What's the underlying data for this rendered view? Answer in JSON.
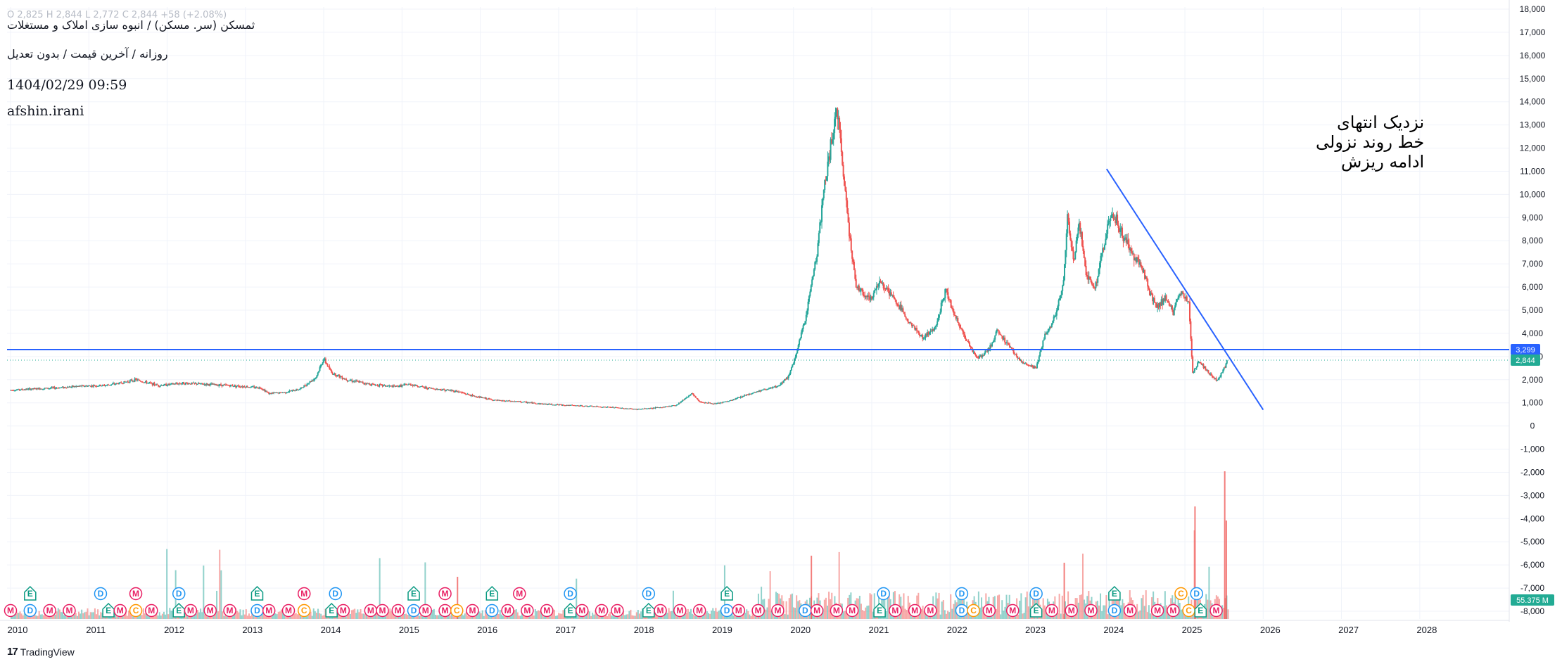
{
  "header": {
    "ohlc_faint": "O 2,825  H 2,844  L 2,772  C 2,844  +58 (+2.08%)",
    "title": "ثمسکن (سر. مسکن) / انبوه سازی املاک و مستغلات",
    "subtitle": "روزانه / آخرین قیمت / بدون تعدیل",
    "datetime": "1404/02/29 09:59",
    "author": "afshin.irani"
  },
  "annotation": {
    "lines": [
      "نزدیک انتهای",
      "خط روند نزولی",
      "ادامه ریزش"
    ]
  },
  "price_tags": {
    "horizontal_line": "3,299",
    "last_price": "2,844",
    "volume": "55.375 M"
  },
  "colors": {
    "up": "#26a69a",
    "down": "#ef5350",
    "trendline": "#2962ff",
    "last_price_tag": "#22ab94",
    "grid": "#f0f3fa",
    "event_dividend": "#2196f3",
    "event_meeting": "#e91e63",
    "event_earnings": "#089981",
    "event_capital": "#ff9800"
  },
  "footer": {
    "brand": "TradingView"
  },
  "chart_data": {
    "type": "candlestick",
    "title": "ثمسکن (سر. مسکن) / انبوه سازی املاک و مستغلات",
    "x_axis": {
      "type": "year",
      "ticks": [
        "2010",
        "2011",
        "2012",
        "2013",
        "2014",
        "2015",
        "2016",
        "2017",
        "2018",
        "2019",
        "2020",
        "2021",
        "2022",
        "2023",
        "2024",
        "2025",
        "2026",
        "2027",
        "2028"
      ],
      "range": [
        2010.0,
        2028.8
      ]
    },
    "y_axis": {
      "ticks": [
        "18,000",
        "17,000",
        "16,000",
        "15,000",
        "14,000",
        "13,000",
        "12,000",
        "11,000",
        "10,000",
        "9,000",
        "8,000",
        "7,000",
        "6,000",
        "5,000",
        "4,000",
        "3,000",
        "2,000",
        "1,000",
        "0",
        "-1,000",
        "-2,000",
        "-3,000",
        "-4,000",
        "-5,000",
        "-6,000",
        "-7,000",
        "-8,000"
      ],
      "range": [
        -8500,
        18000
      ]
    },
    "price_series": {
      "name": "ثمسکن",
      "points": [
        [
          2010.0,
          1550
        ],
        [
          2010.3,
          1600
        ],
        [
          2010.6,
          1650
        ],
        [
          2010.9,
          1720
        ],
        [
          2011.2,
          1750
        ],
        [
          2011.4,
          1850
        ],
        [
          2011.6,
          2000
        ],
        [
          2011.7,
          1900
        ],
        [
          2011.9,
          1750
        ],
        [
          2012.2,
          1850
        ],
        [
          2012.5,
          1800
        ],
        [
          2012.8,
          1750
        ],
        [
          2013.0,
          1700
        ],
        [
          2013.2,
          1650
        ],
        [
          2013.3,
          1400
        ],
        [
          2013.5,
          1450
        ],
        [
          2013.7,
          1600
        ],
        [
          2013.9,
          2100
        ],
        [
          2014.0,
          2900
        ],
        [
          2014.1,
          2300
        ],
        [
          2014.3,
          2000
        ],
        [
          2014.6,
          1800
        ],
        [
          2014.9,
          1700
        ],
        [
          2015.1,
          1800
        ],
        [
          2015.3,
          1650
        ],
        [
          2015.7,
          1500
        ],
        [
          2015.9,
          1300
        ],
        [
          2016.2,
          1100
        ],
        [
          2016.5,
          1050
        ],
        [
          2016.8,
          950
        ],
        [
          2017.1,
          900
        ],
        [
          2017.4,
          850
        ],
        [
          2017.7,
          800
        ],
        [
          2018.0,
          720
        ],
        [
          2018.3,
          800
        ],
        [
          2018.5,
          900
        ],
        [
          2018.7,
          1400
        ],
        [
          2018.8,
          1050
        ],
        [
          2019.0,
          950
        ],
        [
          2019.2,
          1100
        ],
        [
          2019.4,
          1350
        ],
        [
          2019.6,
          1550
        ],
        [
          2019.8,
          1700
        ],
        [
          2019.95,
          2200
        ],
        [
          2020.05,
          3300
        ],
        [
          2020.15,
          4600
        ],
        [
          2020.3,
          7500
        ],
        [
          2020.4,
          10500
        ],
        [
          2020.5,
          12500
        ],
        [
          2020.55,
          13800
        ],
        [
          2020.62,
          11500
        ],
        [
          2020.72,
          8200
        ],
        [
          2020.8,
          6000
        ],
        [
          2020.9,
          5700
        ],
        [
          2021.0,
          5500
        ],
        [
          2021.1,
          6300
        ],
        [
          2021.3,
          5400
        ],
        [
          2021.5,
          4400
        ],
        [
          2021.65,
          3800
        ],
        [
          2021.8,
          4200
        ],
        [
          2021.95,
          5900
        ],
        [
          2022.05,
          4800
        ],
        [
          2022.2,
          3800
        ],
        [
          2022.35,
          2900
        ],
        [
          2022.5,
          3300
        ],
        [
          2022.6,
          4100
        ],
        [
          2022.75,
          3500
        ],
        [
          2022.9,
          2800
        ],
        [
          2023.0,
          2600
        ],
        [
          2023.1,
          2500
        ],
        [
          2023.2,
          3800
        ],
        [
          2023.35,
          4800
        ],
        [
          2023.45,
          6200
        ],
        [
          2023.5,
          9000
        ],
        [
          2023.58,
          7200
        ],
        [
          2023.65,
          8800
        ],
        [
          2023.75,
          6400
        ],
        [
          2023.85,
          6000
        ],
        [
          2023.95,
          7500
        ],
        [
          2024.05,
          9200
        ],
        [
          2024.12,
          8900
        ],
        [
          2024.2,
          8300
        ],
        [
          2024.3,
          7600
        ],
        [
          2024.45,
          6900
        ],
        [
          2024.55,
          5800
        ],
        [
          2024.65,
          5100
        ],
        [
          2024.75,
          5600
        ],
        [
          2024.85,
          4900
        ],
        [
          2024.95,
          5800
        ],
        [
          2025.05,
          5300
        ],
        [
          2025.1,
          2300
        ],
        [
          2025.18,
          2800
        ],
        [
          2025.3,
          2300
        ],
        [
          2025.42,
          1950
        ],
        [
          2025.55,
          2844
        ]
      ]
    },
    "trendline": {
      "from": [
        2024.0,
        11100
      ],
      "to": [
        2026.0,
        700
      ]
    },
    "horizontal_line": {
      "value": 3299
    },
    "last_price_line": {
      "value": 2844
    },
    "volume": {
      "last": "55.375 M"
    },
    "events": [
      {
        "x": 2010.0,
        "row": 2,
        "type": "M"
      },
      {
        "x": 2010.25,
        "row": 2,
        "type": "D"
      },
      {
        "x": 2010.5,
        "row": 2,
        "type": "M"
      },
      {
        "x": 2010.75,
        "row": 2,
        "type": "M"
      },
      {
        "x": 2010.25,
        "row": 1,
        "type": "E"
      },
      {
        "x": 2011.15,
        "row": 1,
        "type": "D"
      },
      {
        "x": 2011.25,
        "row": 2,
        "type": "E"
      },
      {
        "x": 2011.4,
        "row": 2,
        "type": "M"
      },
      {
        "x": 2011.6,
        "row": 2,
        "type": "C"
      },
      {
        "x": 2011.6,
        "row": 1,
        "type": "M"
      },
      {
        "x": 2011.8,
        "row": 2,
        "type": "M"
      },
      {
        "x": 2012.15,
        "row": 1,
        "type": "D"
      },
      {
        "x": 2012.15,
        "row": 2,
        "type": "E"
      },
      {
        "x": 2012.3,
        "row": 2,
        "type": "M"
      },
      {
        "x": 2012.55,
        "row": 2,
        "type": "M"
      },
      {
        "x": 2012.8,
        "row": 2,
        "type": "M"
      },
      {
        "x": 2013.15,
        "row": 1,
        "type": "E"
      },
      {
        "x": 2013.15,
        "row": 2,
        "type": "D"
      },
      {
        "x": 2013.3,
        "row": 2,
        "type": "M"
      },
      {
        "x": 2013.55,
        "row": 2,
        "type": "M"
      },
      {
        "x": 2013.75,
        "row": 2,
        "type": "C"
      },
      {
        "x": 2013.75,
        "row": 1,
        "type": "M"
      },
      {
        "x": 2014.15,
        "row": 1,
        "type": "D"
      },
      {
        "x": 2014.1,
        "row": 2,
        "type": "E"
      },
      {
        "x": 2014.25,
        "row": 2,
        "type": "M"
      },
      {
        "x": 2014.6,
        "row": 2,
        "type": "M"
      },
      {
        "x": 2014.75,
        "row": 2,
        "type": "M"
      },
      {
        "x": 2014.95,
        "row": 2,
        "type": "M"
      },
      {
        "x": 2015.15,
        "row": 1,
        "type": "E"
      },
      {
        "x": 2015.15,
        "row": 2,
        "type": "D"
      },
      {
        "x": 2015.3,
        "row": 2,
        "type": "M"
      },
      {
        "x": 2015.55,
        "row": 1,
        "type": "M"
      },
      {
        "x": 2015.55,
        "row": 2,
        "type": "M"
      },
      {
        "x": 2015.7,
        "row": 2,
        "type": "C"
      },
      {
        "x": 2015.9,
        "row": 2,
        "type": "M"
      },
      {
        "x": 2016.15,
        "row": 1,
        "type": "E"
      },
      {
        "x": 2016.15,
        "row": 2,
        "type": "D"
      },
      {
        "x": 2016.35,
        "row": 2,
        "type": "M"
      },
      {
        "x": 2016.5,
        "row": 1,
        "type": "M"
      },
      {
        "x": 2016.6,
        "row": 2,
        "type": "M"
      },
      {
        "x": 2016.85,
        "row": 2,
        "type": "M"
      },
      {
        "x": 2017.15,
        "row": 1,
        "type": "D"
      },
      {
        "x": 2017.15,
        "row": 2,
        "type": "E"
      },
      {
        "x": 2017.3,
        "row": 2,
        "type": "M"
      },
      {
        "x": 2017.55,
        "row": 2,
        "type": "M"
      },
      {
        "x": 2017.75,
        "row": 2,
        "type": "M"
      },
      {
        "x": 2018.15,
        "row": 1,
        "type": "D"
      },
      {
        "x": 2018.15,
        "row": 2,
        "type": "E"
      },
      {
        "x": 2018.3,
        "row": 2,
        "type": "M"
      },
      {
        "x": 2018.55,
        "row": 2,
        "type": "M"
      },
      {
        "x": 2018.8,
        "row": 2,
        "type": "M"
      },
      {
        "x": 2019.15,
        "row": 1,
        "type": "E"
      },
      {
        "x": 2019.15,
        "row": 2,
        "type": "D"
      },
      {
        "x": 2019.3,
        "row": 2,
        "type": "M"
      },
      {
        "x": 2019.55,
        "row": 2,
        "type": "M"
      },
      {
        "x": 2019.8,
        "row": 2,
        "type": "M"
      },
      {
        "x": 2020.15,
        "row": 2,
        "type": "D"
      },
      {
        "x": 2020.3,
        "row": 2,
        "type": "M"
      },
      {
        "x": 2020.55,
        "row": 2,
        "type": "M"
      },
      {
        "x": 2020.75,
        "row": 2,
        "type": "M"
      },
      {
        "x": 2021.15,
        "row": 1,
        "type": "D"
      },
      {
        "x": 2021.1,
        "row": 2,
        "type": "E"
      },
      {
        "x": 2021.3,
        "row": 2,
        "type": "M"
      },
      {
        "x": 2021.55,
        "row": 2,
        "type": "M"
      },
      {
        "x": 2021.75,
        "row": 2,
        "type": "M"
      },
      {
        "x": 2022.15,
        "row": 1,
        "type": "D"
      },
      {
        "x": 2022.15,
        "row": 2,
        "type": "D"
      },
      {
        "x": 2022.3,
        "row": 2,
        "type": "C"
      },
      {
        "x": 2022.5,
        "row": 2,
        "type": "M"
      },
      {
        "x": 2022.8,
        "row": 2,
        "type": "M"
      },
      {
        "x": 2023.1,
        "row": 1,
        "type": "D"
      },
      {
        "x": 2023.1,
        "row": 2,
        "type": "E"
      },
      {
        "x": 2023.3,
        "row": 2,
        "type": "M"
      },
      {
        "x": 2023.55,
        "row": 2,
        "type": "M"
      },
      {
        "x": 2023.8,
        "row": 2,
        "type": "M"
      },
      {
        "x": 2024.1,
        "row": 1,
        "type": "E"
      },
      {
        "x": 2024.1,
        "row": 2,
        "type": "D"
      },
      {
        "x": 2024.3,
        "row": 2,
        "type": "M"
      },
      {
        "x": 2024.65,
        "row": 2,
        "type": "M"
      },
      {
        "x": 2024.85,
        "row": 2,
        "type": "M"
      },
      {
        "x": 2024.95,
        "row": 1,
        "type": "C"
      },
      {
        "x": 2025.05,
        "row": 2,
        "type": "C"
      },
      {
        "x": 2025.15,
        "row": 1,
        "type": "D"
      },
      {
        "x": 2025.2,
        "row": 2,
        "type": "E"
      },
      {
        "x": 2025.4,
        "row": 2,
        "type": "M"
      }
    ]
  }
}
